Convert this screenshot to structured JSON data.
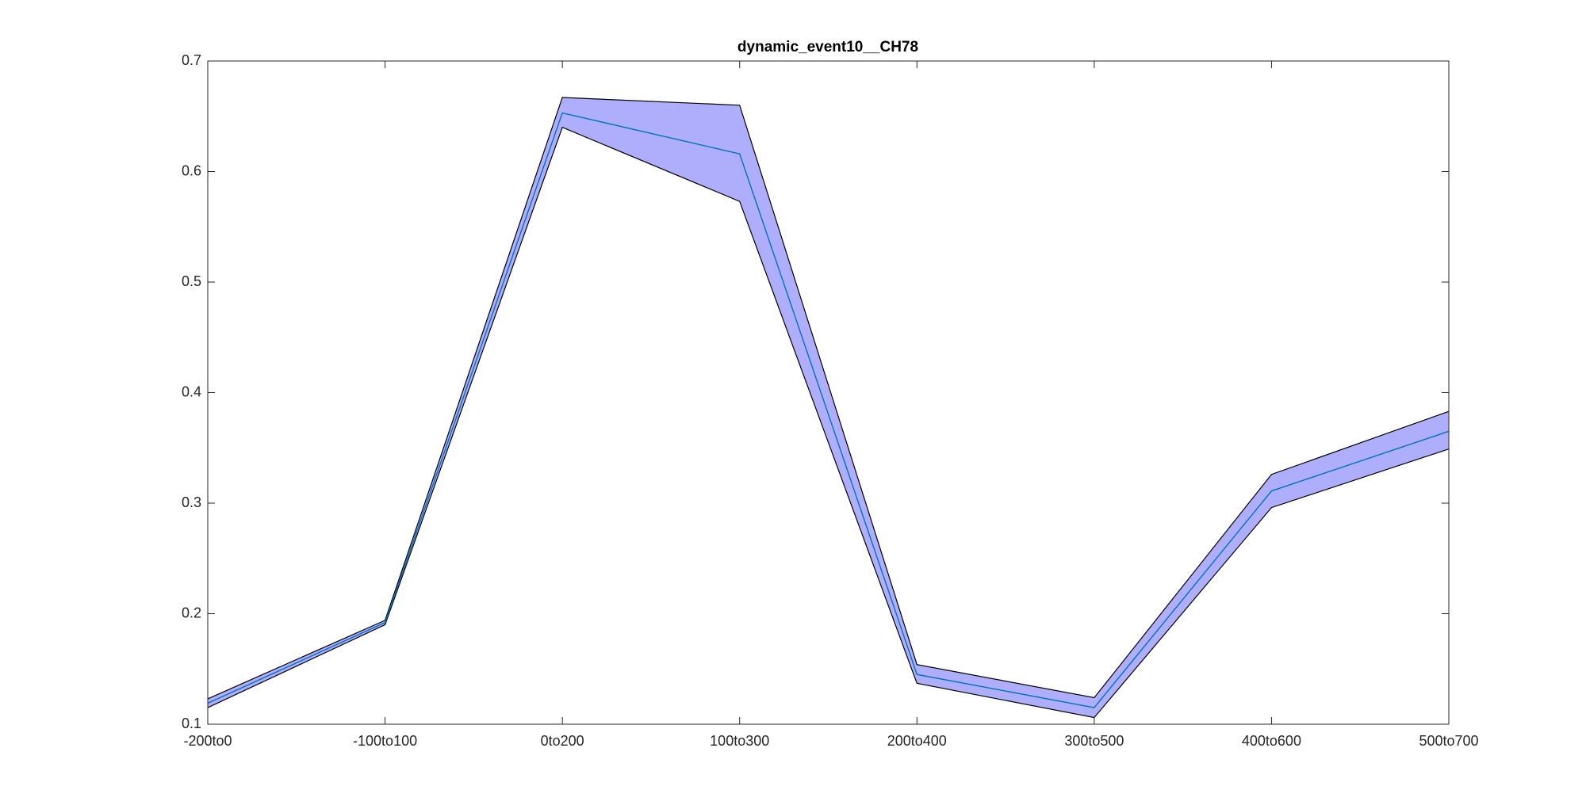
{
  "chart_data": {
    "type": "band-line",
    "title": "dynamic_event10__CH78",
    "categories": [
      "-200to0",
      "-100to100",
      "0to200",
      "100to300",
      "200to400",
      "300to500",
      "400to600",
      "500to700"
    ],
    "line": {
      "color": "#0072bd",
      "values": [
        0.119,
        0.192,
        0.653,
        0.616,
        0.145,
        0.115,
        0.311,
        0.365
      ]
    },
    "band": {
      "color": "#aeaefc",
      "edge_color": "#000000",
      "upper": [
        0.123,
        0.194,
        0.667,
        0.66,
        0.154,
        0.124,
        0.326,
        0.383
      ],
      "lower": [
        0.115,
        0.19,
        0.64,
        0.573,
        0.137,
        0.106,
        0.296,
        0.349
      ]
    },
    "ylim": [
      0.1,
      0.7
    ],
    "yticks": [
      0.1,
      0.2,
      0.3,
      0.4,
      0.5,
      0.6,
      0.7
    ],
    "grid": false
  }
}
